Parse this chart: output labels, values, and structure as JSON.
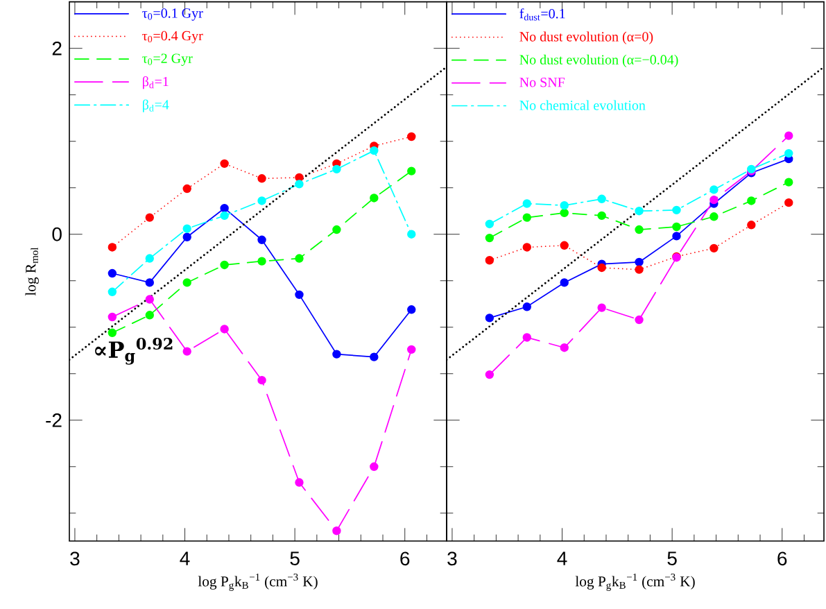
{
  "chart_data": [
    {
      "type": "line",
      "xlabel": "log P$_{g}$k$_{B}$$^{−1}$ (cm$^{−3}$ K)",
      "ylabel": "log R$_{mol}$",
      "x": [
        3.34,
        3.68,
        4.02,
        4.36,
        4.7,
        5.04,
        5.38,
        5.72,
        6.06
      ],
      "series": [
        {
          "name": "τ$_{0}$=0.1 Gyr",
          "color": "#0000ff",
          "line_style": "solid",
          "values": [
            -0.42,
            -0.52,
            -0.03,
            0.28,
            -0.06,
            -0.65,
            -1.29,
            -1.32,
            -0.81
          ]
        },
        {
          "name": "τ$_{0}$=0.4 Gyr",
          "color": "#ff0000",
          "line_style": "dotted",
          "values": [
            -0.14,
            0.18,
            0.49,
            0.76,
            0.6,
            0.61,
            0.76,
            0.95,
            1.05
          ]
        },
        {
          "name": "τ$_{0}$=2 Gyr",
          "color": "#00ff00",
          "line_style": "dashed",
          "values": [
            -1.06,
            -0.87,
            -0.52,
            -0.33,
            -0.29,
            -0.26,
            0.05,
            0.39,
            0.68
          ]
        },
        {
          "name": "β$_{d}$=1",
          "color": "#ff00ff",
          "line_style": "longdash",
          "values": [
            -0.89,
            -0.7,
            -1.26,
            -1.02,
            -1.57,
            -2.67,
            -3.19,
            -2.5,
            -1.24
          ]
        },
        {
          "name": "β$_{d}$=4",
          "color": "#00ffff",
          "line_style": "dashdot",
          "values": [
            -0.62,
            -0.26,
            0.06,
            0.2,
            0.36,
            0.54,
            0.7,
            0.9,
            0.0
          ]
        },
        {
          "type": "line",
          "color": "#000000",
          "line_style": "dotted",
          "marker": "none",
          "x": [
            2.95,
            6.38
          ],
          "values": [
            -1.35,
            1.8
          ]
        }
      ],
      "marker": "circle",
      "legend": "top left",
      "annotations": [
        "∝P$_{g}$$^{0.92}$"
      ],
      "xlim": [
        2.95,
        6.38
      ],
      "ylim": [
        -3.3,
        2.5
      ],
      "xticks": [
        3,
        {
          "value": 3.2,
          "label": null
        },
        {
          "value": 3.4,
          "label": null
        },
        {
          "value": 3.6,
          "label": null
        },
        {
          "value": 3.8,
          "label": null
        },
        4,
        {
          "value": 4.2,
          "label": null
        },
        {
          "value": 4.4,
          "label": null
        },
        {
          "value": 4.6,
          "label": null
        },
        {
          "value": 4.8,
          "label": null
        },
        5,
        {
          "value": 5.2,
          "label": null
        },
        {
          "value": 5.4,
          "label": null
        },
        {
          "value": 5.6,
          "label": null
        },
        {
          "value": 5.8,
          "label": null
        },
        6,
        {
          "value": 6.2,
          "label": null
        }
      ],
      "yticks": [
        {
          "value": -3,
          "label": null
        },
        {
          "value": -2.5,
          "label": null
        },
        -2,
        {
          "value": -1.5,
          "label": null
        },
        {
          "value": -1,
          "label": null
        },
        {
          "value": -0.5,
          "label": null
        },
        0,
        {
          "value": 0.5,
          "label": null
        },
        {
          "value": 1,
          "label": null
        },
        {
          "value": 1.5,
          "label": null
        },
        2
      ]
    },
    {
      "type": "line",
      "xlabel": "log P$_{g}$k$_{B}$$^{−1}$ (cm$^{−3}$ K)",
      "x": [
        3.34,
        3.68,
        4.02,
        4.36,
        4.7,
        5.04,
        5.38,
        5.72,
        6.06
      ],
      "series": [
        {
          "name": "f$_{dust}$=0.1",
          "color": "#0000ff",
          "line_style": "solid",
          "values": [
            -0.9,
            -0.78,
            -0.52,
            -0.32,
            -0.3,
            -0.02,
            0.33,
            0.66,
            0.81
          ]
        },
        {
          "name": "No dust evolution (α=0)",
          "color": "#ff0000",
          "line_style": "dotted",
          "values": [
            -0.28,
            -0.14,
            -0.12,
            -0.36,
            -0.38,
            -0.24,
            -0.15,
            0.1,
            0.34
          ]
        },
        {
          "name": "No dust evolution (α=−0.04)",
          "color": "#00ff00",
          "line_style": "dashed",
          "values": [
            -0.04,
            0.18,
            0.23,
            0.2,
            0.05,
            0.08,
            0.19,
            0.36,
            0.56
          ]
        },
        {
          "name": "No SNF",
          "color": "#ff00ff",
          "line_style": "longdash",
          "values": [
            -1.51,
            -1.11,
            -1.22,
            -0.79,
            -0.92,
            -0.25,
            0.37,
            0.68,
            1.06
          ]
        },
        {
          "name": "No chemical evolution",
          "color": "#00ffff",
          "line_style": "dashdot",
          "values": [
            0.11,
            0.33,
            0.31,
            0.38,
            0.25,
            0.26,
            0.48,
            0.7,
            0.87
          ]
        },
        {
          "type": "line",
          "color": "#000000",
          "line_style": "dotted",
          "marker": "none",
          "x": [
            2.95,
            6.37
          ],
          "values": [
            -1.35,
            1.79
          ]
        }
      ],
      "marker": "circle",
      "legend": "top left",
      "tick_labels": "x",
      "xlim": [
        2.95,
        6.38
      ],
      "ylim": [
        -3.3,
        2.5
      ],
      "xticks": [
        3,
        {
          "value": 3.2,
          "label": null
        },
        {
          "value": 3.4,
          "label": null
        },
        {
          "value": 3.6,
          "label": null
        },
        {
          "value": 3.8,
          "label": null
        },
        4,
        {
          "value": 4.2,
          "label": null
        },
        {
          "value": 4.4,
          "label": null
        },
        {
          "value": 4.6,
          "label": null
        },
        {
          "value": 4.8,
          "label": null
        },
        5,
        {
          "value": 5.2,
          "label": null
        },
        {
          "value": 5.4,
          "label": null
        },
        {
          "value": 5.6,
          "label": null
        },
        {
          "value": 5.8,
          "label": null
        },
        6,
        {
          "value": 6.2,
          "label": null
        }
      ],
      "yticks": [
        {
          "value": -3,
          "label": null
        },
        {
          "value": -2.5,
          "label": null
        },
        -2,
        {
          "value": -1.5,
          "label": null
        },
        {
          "value": -1,
          "label": null
        },
        {
          "value": -0.5,
          "label": null
        },
        0,
        {
          "value": 0.5,
          "label": null
        },
        {
          "value": 1,
          "label": null
        },
        {
          "value": 1.5,
          "label": null
        },
        2
      ]
    }
  ]
}
